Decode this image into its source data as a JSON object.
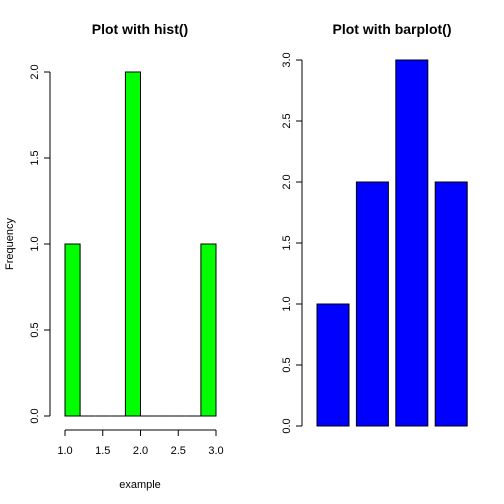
{
  "chart_data": [
    {
      "type": "bar",
      "title": "Plot with hist()",
      "xlabel": "example",
      "ylabel": "Frequency",
      "bin_edges": [
        1.0,
        1.2,
        1.4,
        1.6,
        1.8,
        2.0,
        2.2,
        2.4,
        2.6,
        2.8,
        3.0
      ],
      "values": [
        1,
        0,
        0,
        0,
        2,
        0,
        0,
        0,
        0,
        1
      ],
      "xlim": [
        1.0,
        3.0
      ],
      "ylim": [
        0,
        2
      ],
      "x_ticks": [
        "1.0",
        "1.5",
        "2.0",
        "2.5",
        "3.0"
      ],
      "y_ticks": [
        "0.0",
        "0.5",
        "1.0",
        "1.5",
        "2.0"
      ],
      "bar_color": "#00ff00",
      "grid": false
    },
    {
      "type": "bar",
      "title": "Plot with barplot()",
      "xlabel": "",
      "ylabel": "",
      "categories": [
        "",
        "",
        "",
        ""
      ],
      "values": [
        1,
        2,
        3,
        2
      ],
      "ylim": [
        0,
        3
      ],
      "y_ticks": [
        "0.0",
        "0.5",
        "1.0",
        "1.5",
        "2.0",
        "2.5",
        "3.0"
      ],
      "bar_color": "#0000ff",
      "grid": false
    }
  ]
}
